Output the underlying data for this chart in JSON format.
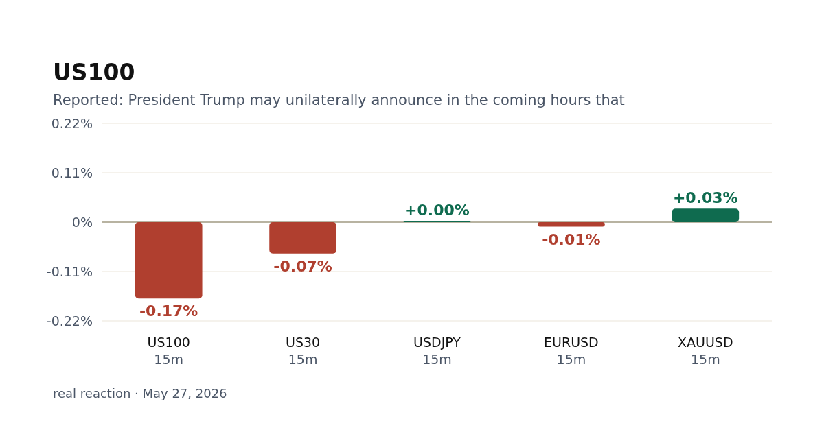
{
  "chart_data": {
    "type": "bar",
    "title": "US100",
    "subtitle": "Reported: President Trump may unilaterally announce in the coming hours that",
    "categories": [
      "US100\n15m",
      "US30\n15m",
      "USDJPY\n15m",
      "EURUSD\n15m",
      "XAUUSD\n15m"
    ],
    "values": [
      -0.17,
      -0.07,
      0.0,
      -0.01,
      0.03
    ],
    "colors": [
      "#b03f2f",
      "#b03f2f",
      "#0f6b4f",
      "#b03f2f",
      "#0f6b4f"
    ],
    "value_labels": [
      "-0.17%",
      "-0.07%",
      "+0.00%",
      "-0.01%",
      "+0.03%"
    ],
    "ylim": [
      -0.22,
      0.22
    ],
    "yticks": [
      {
        "value": 0.22,
        "label": "0.22%"
      },
      {
        "value": 0.11,
        "label": "0.11%"
      },
      {
        "value": 0,
        "label": "0%"
      },
      {
        "value": -0.11,
        "label": "-0.11%"
      },
      {
        "value": -0.22,
        "label": "-0.22%"
      }
    ],
    "grid": "y",
    "ref_lines": [
      {
        "axis": "y",
        "value": 0,
        "color": "#a39e88"
      }
    ],
    "annotations": [
      "real reaction · May 27, 2026"
    ]
  }
}
